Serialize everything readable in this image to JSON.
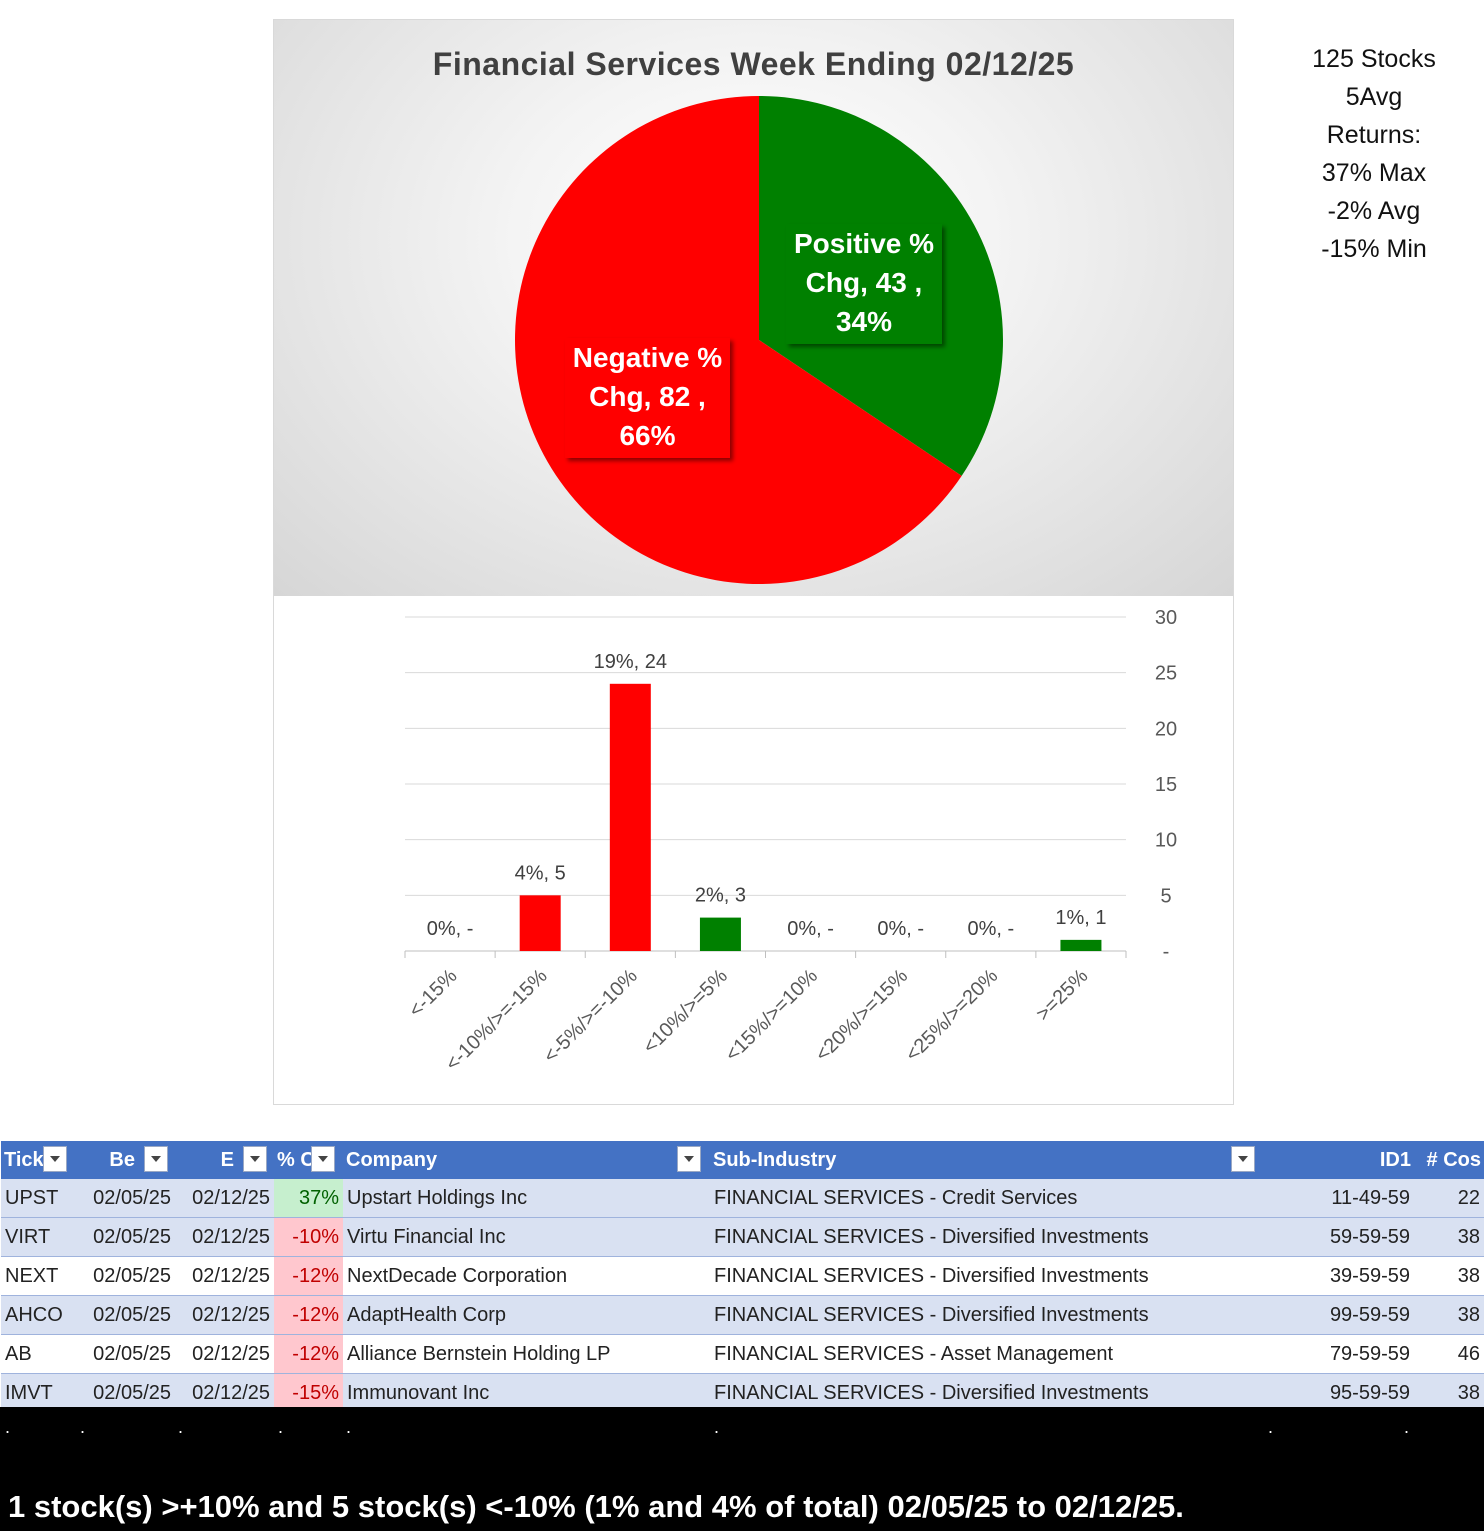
{
  "pie": {
    "title": "Financial Services Week Ending 02/12/25",
    "slices": [
      {
        "name": "Positive % Chg",
        "count": 43,
        "pct": "34%",
        "color": "#008000",
        "label_lines": [
          "Positive %",
          "Chg,  43 ,",
          "34%"
        ]
      },
      {
        "name": "Negative % Chg",
        "count": 82,
        "pct": "66%",
        "color": "#ff0000",
        "label_lines": [
          "Negative %",
          "Chg,  82 ,",
          "66%"
        ]
      }
    ]
  },
  "stats": {
    "lines": [
      "125 Stocks",
      "5Avg",
      "Returns:",
      "37% Max",
      "-2% Avg",
      "-15% Min"
    ]
  },
  "chart_data": {
    "type": "bar",
    "title": "",
    "categories": [
      "<-15%",
      "<-10%/>=-15%",
      "<-5%/>=-10%",
      "<10%/>=5%",
      "<15%/>=10%",
      "<20%/>=15%",
      "<25%/>=20%",
      ">=25%"
    ],
    "values": [
      0,
      5,
      24,
      3,
      0,
      0,
      0,
      1
    ],
    "data_labels": [
      "0%,  -",
      "4%,  5",
      "19%,  24",
      "2%,  3",
      "0%,  -",
      "0%,  -",
      "0%,  -",
      "1%,  1"
    ],
    "colors": [
      "#ff0000",
      "#ff0000",
      "#ff0000",
      "#008000",
      "#008000",
      "#008000",
      "#008000",
      "#008000"
    ],
    "ylim": [
      0,
      30
    ],
    "yticks": [
      0,
      5,
      10,
      15,
      20,
      25,
      30
    ],
    "ytick_labels": [
      "-",
      "5",
      "10",
      "15",
      "20",
      "25",
      "30"
    ],
    "y_axis_side": "right",
    "grid": true
  },
  "table": {
    "headers": [
      "Tick",
      "Be",
      "E",
      "% C",
      "Company",
      "Sub-Industry",
      "ID1",
      "# Cos"
    ],
    "rows": [
      {
        "ticker": "UPST",
        "begin": "02/05/25",
        "end": "02/12/25",
        "chg": "37%",
        "company": "Upstart Holdings Inc",
        "sub": "FINANCIAL SERVICES - Credit Services",
        "id1": "11-49-59",
        "cos": "22"
      },
      {
        "ticker": "VIRT",
        "begin": "02/05/25",
        "end": "02/12/25",
        "chg": "-10%",
        "company": "Virtu Financial Inc",
        "sub": "FINANCIAL SERVICES - Diversified Investments",
        "id1": "59-59-59",
        "cos": "38"
      },
      {
        "ticker": "NEXT",
        "begin": "02/05/25",
        "end": "02/12/25",
        "chg": "-12%",
        "company": "NextDecade Corporation",
        "sub": "FINANCIAL SERVICES - Diversified Investments",
        "id1": "39-59-59",
        "cos": "38"
      },
      {
        "ticker": "AHCO",
        "begin": "02/05/25",
        "end": "02/12/25",
        "chg": "-12%",
        "company": "AdaptHealth Corp",
        "sub": "FINANCIAL SERVICES - Diversified Investments",
        "id1": "99-59-59",
        "cos": "38"
      },
      {
        "ticker": "AB",
        "begin": "02/05/25",
        "end": "02/12/25",
        "chg": "-12%",
        "company": "Alliance Bernstein Holding LP",
        "sub": "FINANCIAL SERVICES - Asset Management",
        "id1": "79-59-59",
        "cos": "46"
      },
      {
        "ticker": "IMVT",
        "begin": "02/05/25",
        "end": "02/12/25",
        "chg": "-15%",
        "company": "Immunovant Inc",
        "sub": "FINANCIAL SERVICES - Diversified Investments",
        "id1": "95-59-59",
        "cos": "38"
      }
    ]
  },
  "footer": {
    "dot": ".",
    "summary": "1 stock(s) >+10% and 5 stock(s) <-10% (1% and 4% of total) 02/05/25 to 02/12/25."
  }
}
